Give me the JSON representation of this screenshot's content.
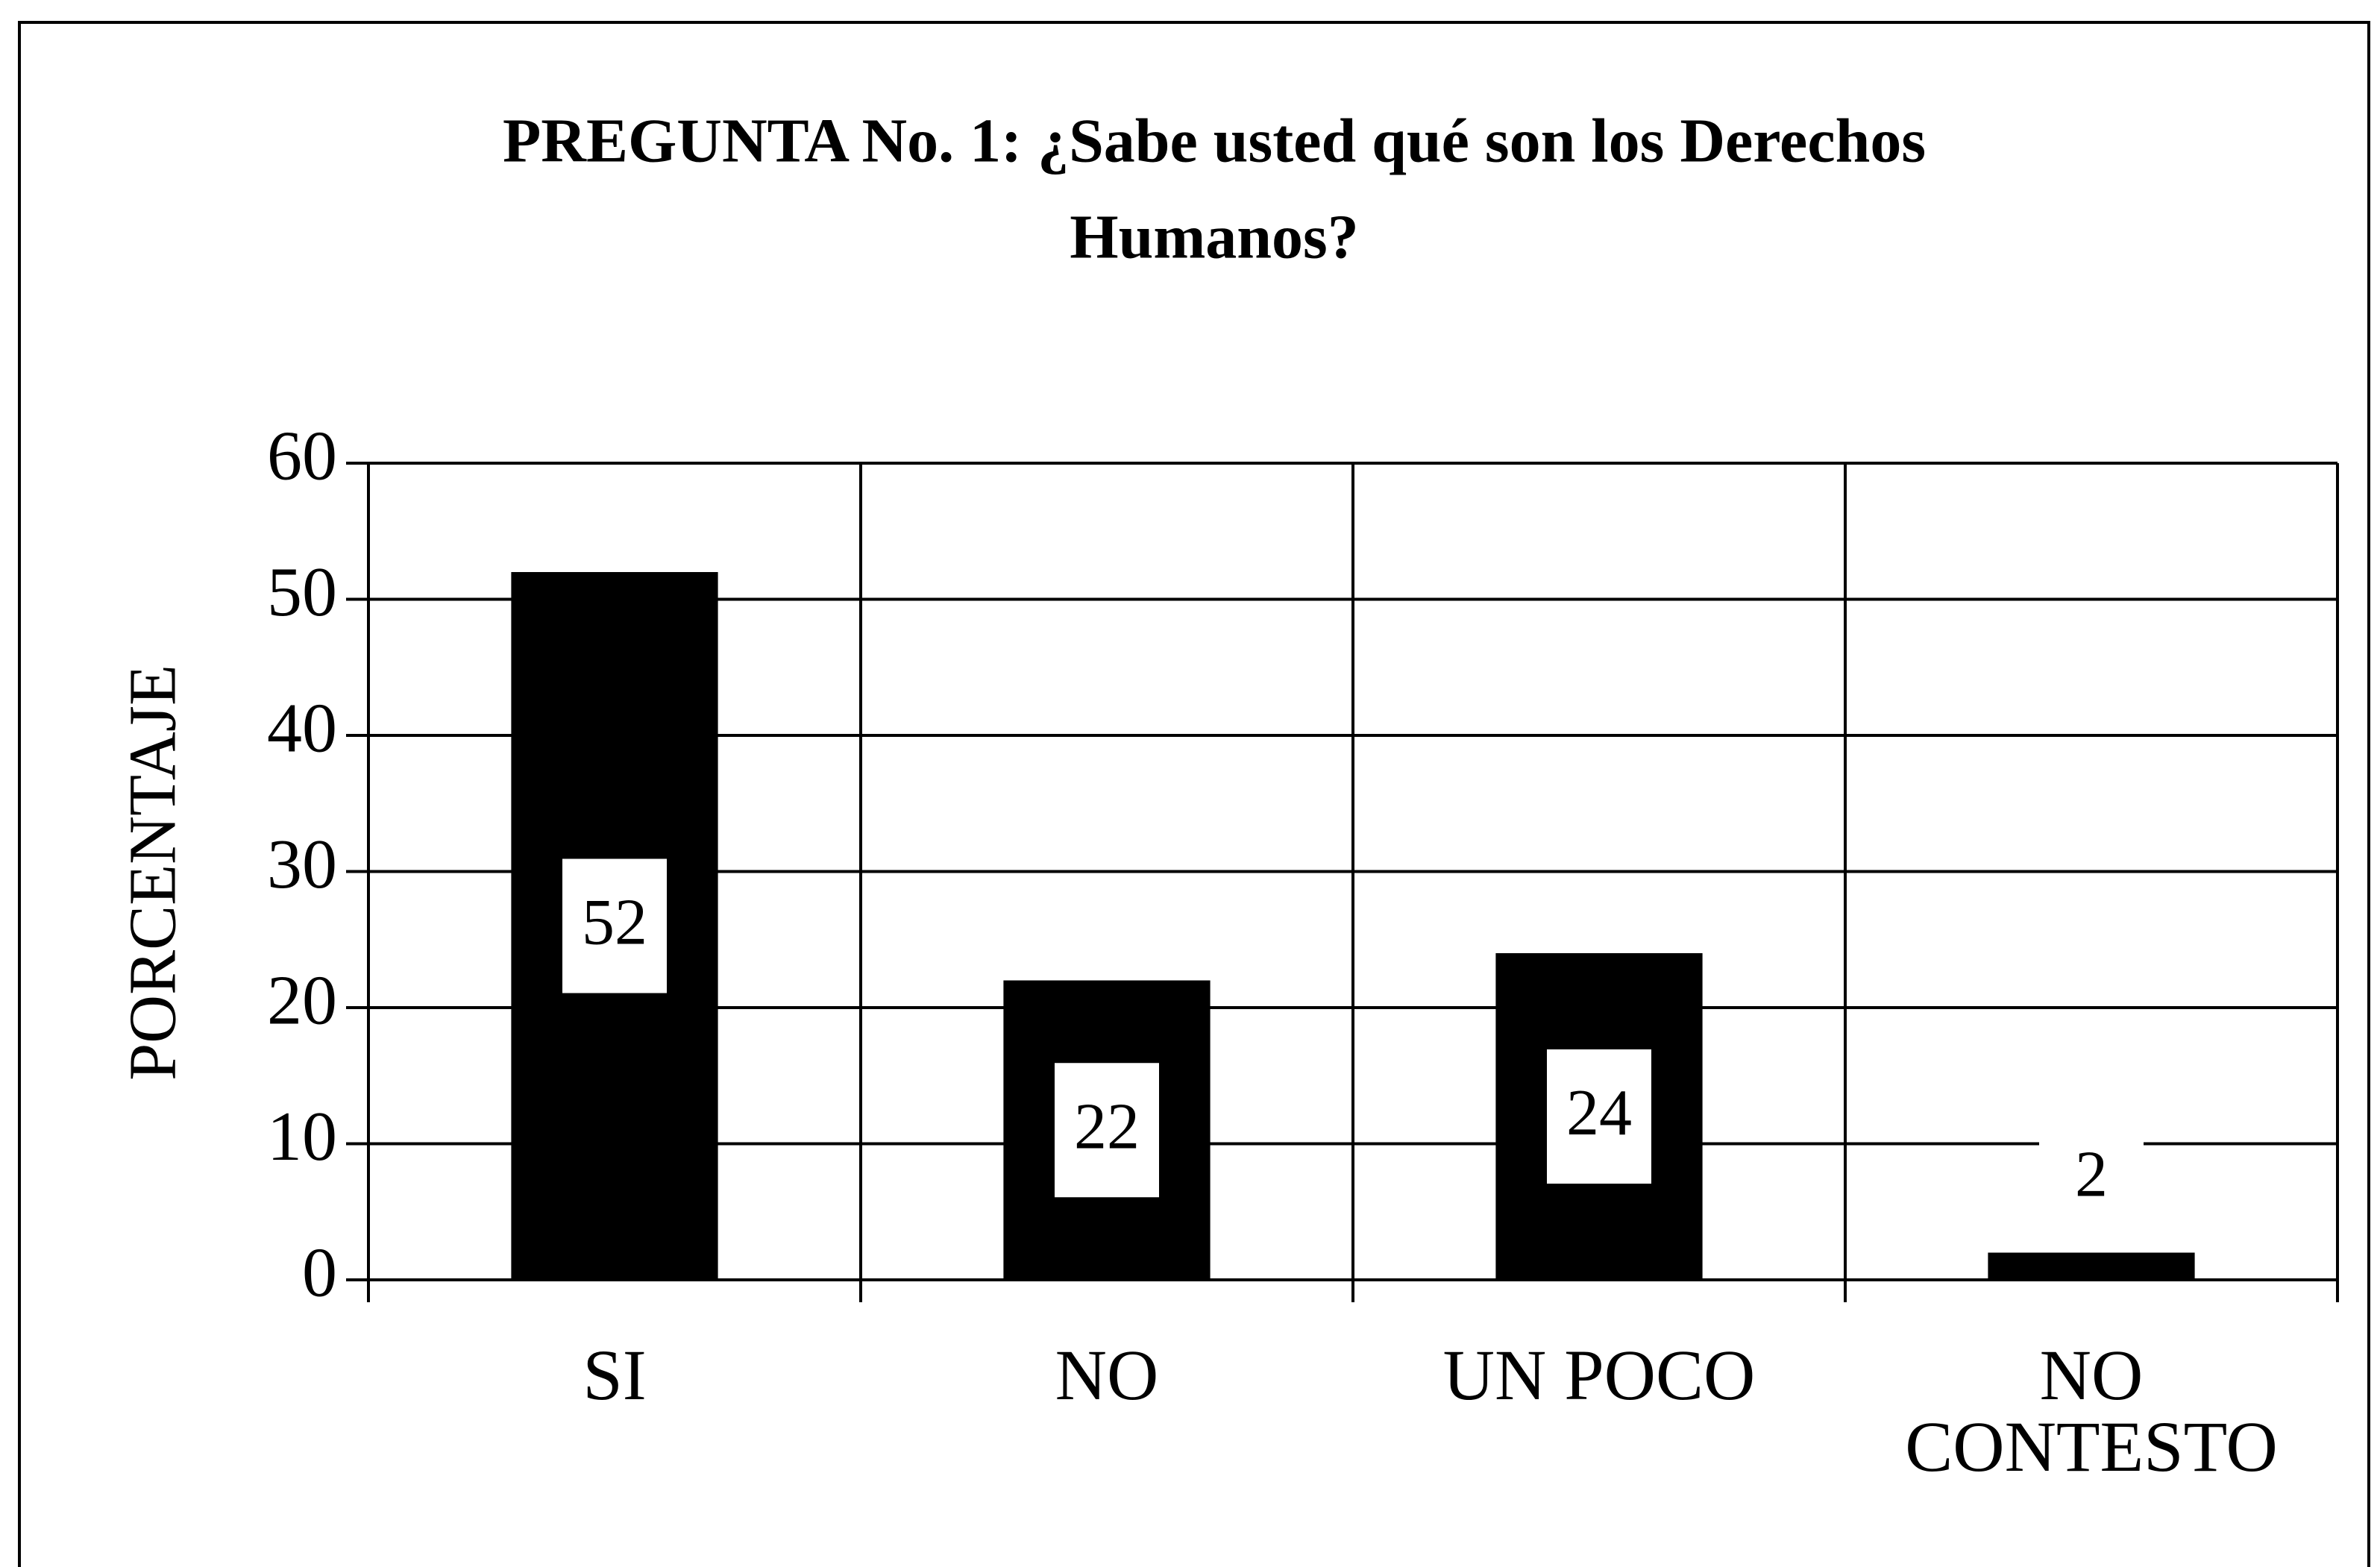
{
  "chart_data": {
    "type": "bar",
    "title": [
      "PREGUNTA No. 1:  ¿Sabe usted qué son los Derechos",
      "Humanos?"
    ],
    "y_label": "PORCENTAJE",
    "categories": [
      "SI",
      "NO",
      "UN POCO",
      "NO CONTESTO"
    ],
    "values": [
      52,
      22,
      24,
      2
    ],
    "color": "#000000",
    "ylim": [
      0,
      60
    ],
    "yticks": [
      0,
      10,
      20,
      30,
      40,
      50,
      60
    ],
    "grid": true
  }
}
